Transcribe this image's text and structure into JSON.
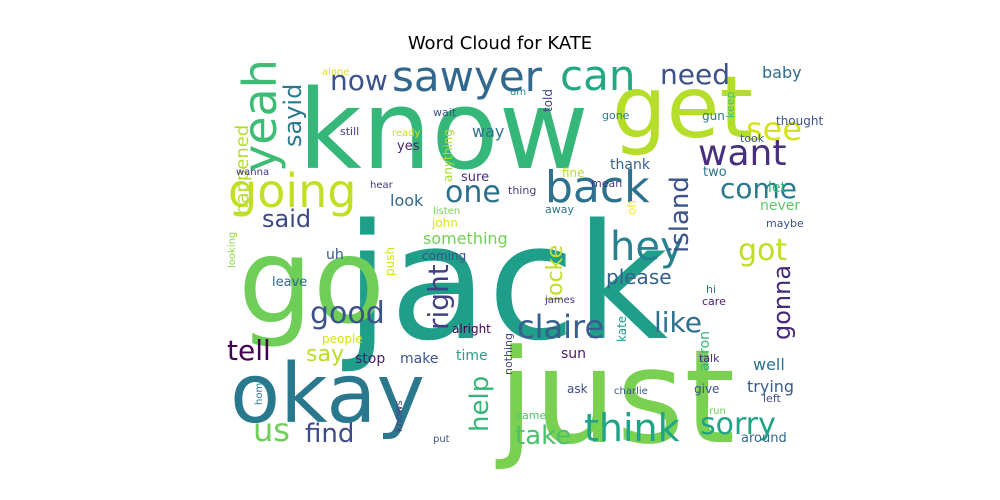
{
  "title": "Word Cloud for KATE",
  "words": [
    {
      "text": "jack",
      "color": "#1f9e89"
    },
    {
      "text": "know",
      "color": "#35b779"
    },
    {
      "text": "just",
      "color": "#7ad151"
    },
    {
      "text": "go",
      "color": "#6ece58"
    },
    {
      "text": "okay",
      "color": "#2a788e"
    },
    {
      "text": "get",
      "color": "#b5de2b"
    },
    {
      "text": "going",
      "color": "#c2df23"
    },
    {
      "text": "back",
      "color": "#2c718e"
    },
    {
      "text": "sawyer",
      "color": "#31688e"
    },
    {
      "text": "can",
      "color": "#22a884"
    },
    {
      "text": "yeah",
      "color": "#3dbc74"
    },
    {
      "text": "want",
      "color": "#472f7d"
    },
    {
      "text": "hey",
      "color": "#26828e"
    },
    {
      "text": "think",
      "color": "#20a486"
    },
    {
      "text": "claire",
      "color": "#355f8d"
    },
    {
      "text": "need",
      "color": "#3b528b"
    },
    {
      "text": "see",
      "color": "#d8e219"
    },
    {
      "text": "come",
      "color": "#2a788e"
    },
    {
      "text": "one",
      "color": "#2d708e"
    },
    {
      "text": "now",
      "color": "#3b528b"
    },
    {
      "text": "sayid",
      "color": "#2a788e"
    },
    {
      "text": "got",
      "color": "#bddf26"
    },
    {
      "text": "good",
      "color": "#3b528b"
    },
    {
      "text": "like",
      "color": "#2e6e8e"
    },
    {
      "text": "right",
      "color": "#433e85"
    },
    {
      "text": "island",
      "color": "#3b528b"
    },
    {
      "text": "sorry",
      "color": "#20a386"
    },
    {
      "text": "said",
      "color": "#3e4989"
    },
    {
      "text": "help",
      "color": "#35b779"
    },
    {
      "text": "tell",
      "color": "#440154"
    },
    {
      "text": "gonna",
      "color": "#482878"
    },
    {
      "text": "take",
      "color": "#4ac16d"
    },
    {
      "text": "find",
      "color": "#3e4a89"
    },
    {
      "text": "us",
      "color": "#6ece58"
    },
    {
      "text": "say",
      "color": "#b8de29"
    },
    {
      "text": "please",
      "color": "#33628d"
    },
    {
      "text": "locke",
      "color": "#c2df23"
    },
    {
      "text": "happened",
      "color": "#b5de2b"
    },
    {
      "text": "baby",
      "color": "#2e6d8e"
    },
    {
      "text": "something",
      "color": "#73d056"
    },
    {
      "text": "well",
      "color": "#2c718e"
    },
    {
      "text": "trying",
      "color": "#365c8d"
    },
    {
      "text": "way",
      "color": "#2c718e"
    },
    {
      "text": "look",
      "color": "#31688e"
    },
    {
      "text": "never",
      "color": "#5ec962"
    },
    {
      "text": "stop",
      "color": "#481769"
    },
    {
      "text": "sun",
      "color": "#48186a"
    },
    {
      "text": "aaron",
      "color": "#32b67a"
    },
    {
      "text": "time",
      "color": "#20a386"
    },
    {
      "text": "let",
      "color": "#3aba76"
    },
    {
      "text": "thank",
      "color": "#33638d"
    },
    {
      "text": "make",
      "color": "#3a548c"
    },
    {
      "text": "sure",
      "color": "#472d7b"
    },
    {
      "text": "two",
      "color": "#2a778e"
    },
    {
      "text": "still",
      "color": "#443a83"
    },
    {
      "text": "yes",
      "color": "#481f70"
    },
    {
      "text": "anything",
      "color": "#a5db36"
    },
    {
      "text": "thought",
      "color": "#3b528b"
    },
    {
      "text": "took",
      "color": "#39568c"
    },
    {
      "text": "keep",
      "color": "#44bf70"
    },
    {
      "text": "gun",
      "color": "#2a788e"
    },
    {
      "text": "told",
      "color": "#433e85"
    },
    {
      "text": "gone",
      "color": "#287d8e"
    },
    {
      "text": "wait",
      "color": "#3b528b"
    },
    {
      "text": "um",
      "color": "#23898e"
    },
    {
      "text": "alone",
      "color": "#dde318"
    },
    {
      "text": "ready",
      "color": "#c8e020"
    },
    {
      "text": "wanna",
      "color": "#46327e"
    },
    {
      "text": "hear",
      "color": "#453581"
    },
    {
      "text": "mean",
      "color": "#443983"
    },
    {
      "text": "fine",
      "color": "#b5de2b"
    },
    {
      "text": "thing",
      "color": "#433e85"
    },
    {
      "text": "oh",
      "color": "#fde725"
    },
    {
      "text": "away",
      "color": "#2a788e"
    },
    {
      "text": "listen",
      "color": "#7ad151"
    },
    {
      "text": "john",
      "color": "#dde318"
    },
    {
      "text": "maybe",
      "color": "#3b528b"
    },
    {
      "text": "coming",
      "color": "#3b528b"
    },
    {
      "text": "push",
      "color": "#d0e11c"
    },
    {
      "text": "uh",
      "color": "#3a548c"
    },
    {
      "text": "looking",
      "color": "#93d741"
    },
    {
      "text": "leave",
      "color": "#306a8e"
    },
    {
      "text": "hi",
      "color": "#2a788e"
    },
    {
      "text": "james",
      "color": "#46337f"
    },
    {
      "text": "care",
      "color": "#481b6d"
    },
    {
      "text": "alright",
      "color": "#440154"
    },
    {
      "text": "people",
      "color": "#d2e21b"
    },
    {
      "text": "kate",
      "color": "#1f9a8a"
    },
    {
      "text": "talk",
      "color": "#472d7b"
    },
    {
      "text": "nothing",
      "color": "#404688"
    },
    {
      "text": "ask",
      "color": "#3e4989"
    },
    {
      "text": "charlie",
      "color": "#3b528b"
    },
    {
      "text": "give",
      "color": "#3b528b"
    },
    {
      "text": "left",
      "color": "#3e4989"
    },
    {
      "text": "came",
      "color": "#4ac16d"
    },
    {
      "text": "home",
      "color": "#2a788e"
    },
    {
      "text": "knows",
      "color": "#433e85"
    },
    {
      "text": "run",
      "color": "#6ece58"
    },
    {
      "text": "put",
      "color": "#3b528b"
    },
    {
      "text": "around",
      "color": "#31688e"
    }
  ]
}
